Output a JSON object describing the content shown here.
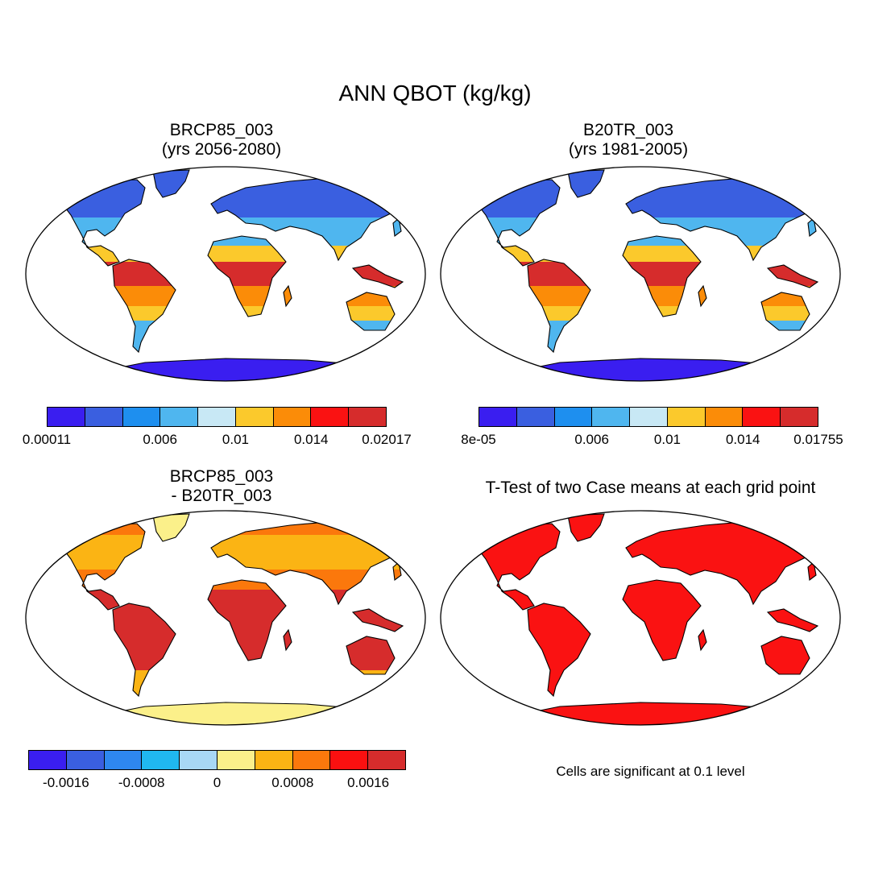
{
  "title": "ANN QBOT (kg/kg)",
  "panels": [
    {
      "id": "brcp85",
      "title_line1": "BRCP85_003",
      "title_line2": "(yrs 2056-2080)",
      "colorbar": {
        "colors": [
          "#3a1ef0",
          "#3a5fe0",
          "#1e8fef",
          "#4fb6ef",
          "#c8e8f5",
          "#fbc92c",
          "#fb8c08",
          "#fa1212",
          "#d62c2c"
        ],
        "labels": [
          "0.00011",
          "0.006",
          "0.01",
          "0.014",
          "0.02017"
        ]
      }
    },
    {
      "id": "b20tr",
      "title_line1": "B20TR_003",
      "title_line2": "(yrs 1981-2005)",
      "colorbar": {
        "colors": [
          "#3a1ef0",
          "#3a5fe0",
          "#1e8fef",
          "#4fb6ef",
          "#c8e8f5",
          "#fbc92c",
          "#fb8c08",
          "#fa1212",
          "#d62c2c"
        ],
        "labels": [
          "8e-05",
          "0.006",
          "0.01",
          "0.014",
          "0.01755"
        ]
      }
    },
    {
      "id": "diff",
      "title_line1": "BRCP85_003",
      "title_line2": "- B20TR_003",
      "colorbar": {
        "colors": [
          "#3a1ef0",
          "#3a5fe0",
          "#2e87ef",
          "#20b8f0",
          "#a8d8f5",
          "#fbf08a",
          "#fbb414",
          "#fb780c",
          "#fb1010",
          "#d62c2c"
        ],
        "labels": [
          "-0.0016",
          "-0.0008",
          "0",
          "0.0008",
          "0.0016"
        ]
      }
    },
    {
      "id": "ttest",
      "title_line1": "T-Test of two Case means at each grid point",
      "note": "Cells are significant at 0.1 level"
    }
  ],
  "map_colors": {
    "ocean": "#ffffff",
    "p1": {
      "high_lat": "#3a5fe0",
      "mid_lat": "#4fb6ef",
      "subtrop": "#fbc92c",
      "trop_dry": "#fb8c08",
      "trop_wet": "#d62c2c",
      "antarctica": "#3a1ef0"
    },
    "p2": {
      "high_lat": "#3a5fe0",
      "mid_lat": "#4fb6ef",
      "subtrop": "#fbc92c",
      "trop_dry": "#fb8c08",
      "trop_wet": "#d62c2c",
      "antarctica": "#3a1ef0"
    },
    "p3": {
      "high_lat": "#fbb414",
      "mid_lat": "#fb780c",
      "trop": "#d62c2c",
      "antarctica": "#fbf08a",
      "greenland": "#fbf08a"
    },
    "p4": {
      "land": "#fa1212"
    }
  }
}
